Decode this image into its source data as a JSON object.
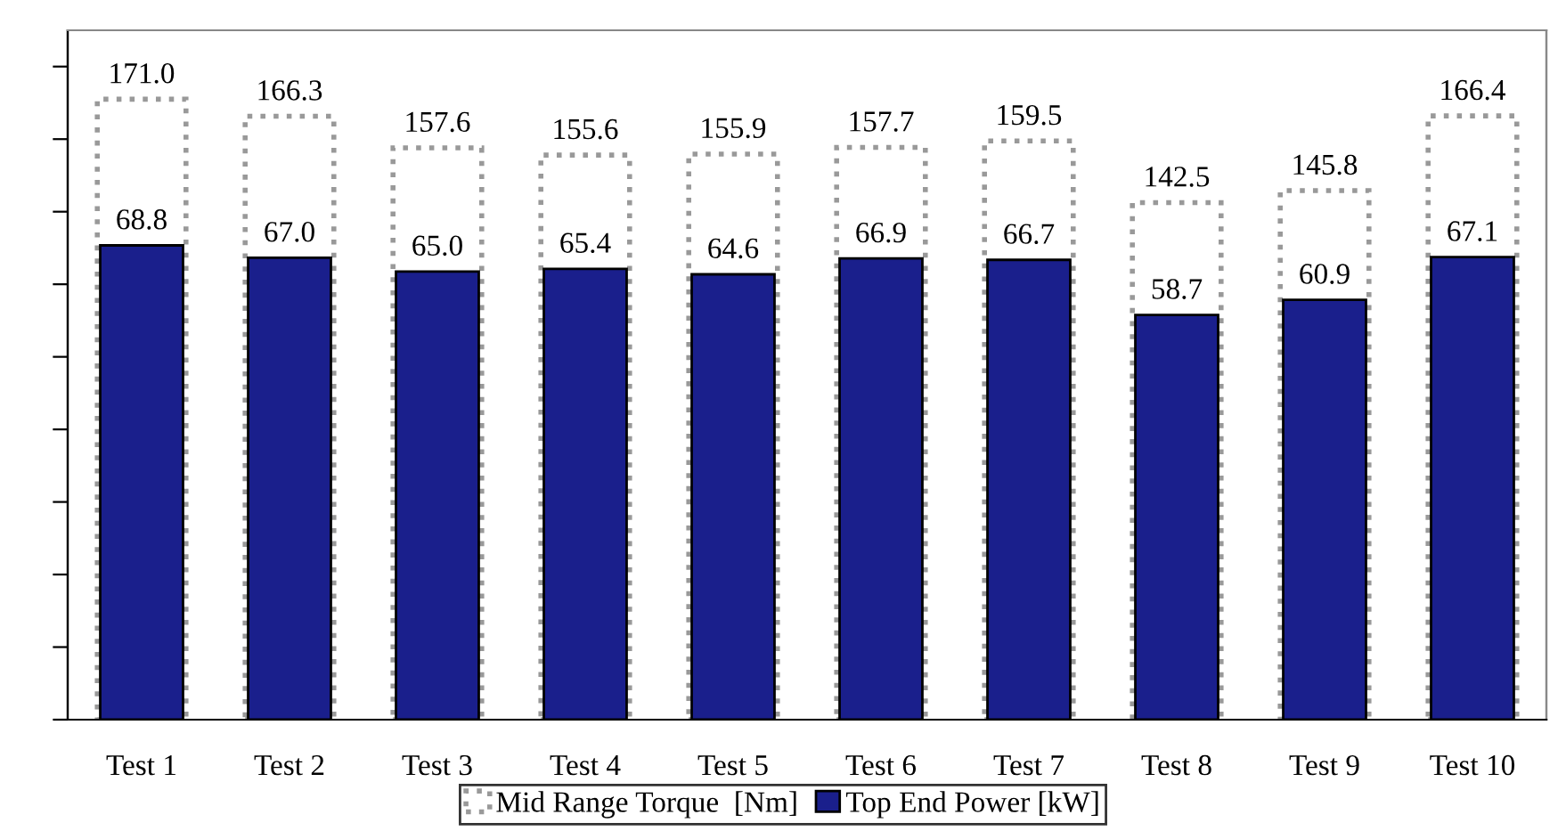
{
  "chart_data": {
    "type": "bar",
    "categories": [
      "Test 1",
      "Test 2",
      "Test 3",
      "Test 4",
      "Test 5",
      "Test 6",
      "Test 7",
      "Test 8",
      "Test 9",
      "Test 10"
    ],
    "series": [
      {
        "name": "Mid Range Torque  [Nm]",
        "color": "#ffffff",
        "values": [
          171.0,
          166.3,
          157.6,
          155.6,
          155.9,
          157.7,
          159.5,
          142.5,
          145.8,
          166.4
        ],
        "value_labels": [
          "171.0",
          "166.3",
          "157.6",
          "155.6",
          "155.9",
          "157.7",
          "159.5",
          "142.5",
          "145.8",
          "166.4"
        ]
      },
      {
        "name": "Top End Power [kW]",
        "color": "#1a1f8c",
        "axis": "y2",
        "values": [
          68.8,
          67.0,
          65.0,
          65.4,
          64.6,
          66.9,
          66.7,
          58.7,
          60.9,
          67.1
        ],
        "value_labels": [
          "68.8",
          "67.0",
          "65.0",
          "65.4",
          "64.6",
          "66.9",
          "66.7",
          "58.7",
          "60.9",
          "67.1"
        ]
      }
    ],
    "ylim": [
      0,
      190
    ],
    "yticks": [
      {
        "value": 0,
        "label": null
      },
      {
        "value": 20,
        "label": null
      },
      {
        "value": 40,
        "label": null
      },
      {
        "value": 60,
        "label": null
      },
      {
        "value": 80,
        "label": null
      },
      {
        "value": 100,
        "label": null
      },
      {
        "value": 120,
        "label": null
      },
      {
        "value": 140,
        "label": null
      },
      {
        "value": 160,
        "label": null
      },
      {
        "value": 180,
        "label": null
      }
    ],
    "y2lim": [
      0,
      100
    ],
    "tick_labels": "x",
    "legend": "bottom",
    "grid": false
  }
}
